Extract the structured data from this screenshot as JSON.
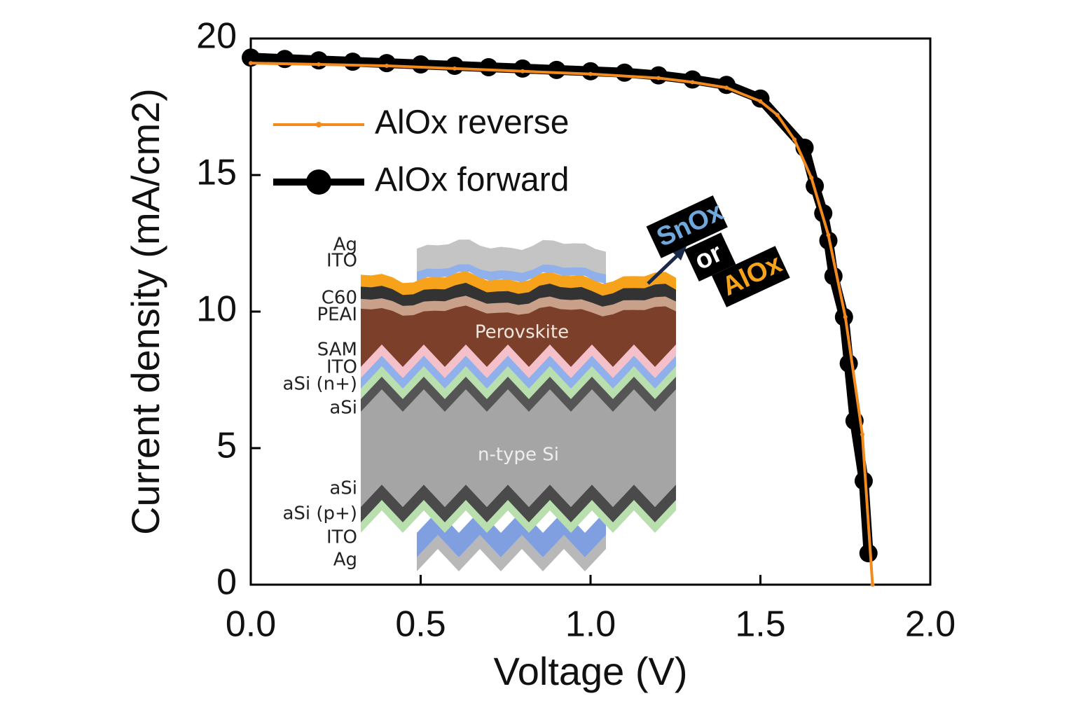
{
  "chart_data": {
    "type": "line",
    "x_label": "Voltage (V)",
    "y_label": "Current density (mA/cm2)",
    "xlim": [
      0,
      2
    ],
    "ylim": [
      0,
      20
    ],
    "xticks": [
      {
        "value": 0,
        "label": "0.0"
      },
      {
        "value": 0.5,
        "label": "0.5"
      },
      {
        "value": 1,
        "label": "1.0"
      },
      {
        "value": 1.5,
        "label": "1.5"
      },
      {
        "value": 2,
        "label": "2.0"
      }
    ],
    "yticks": [
      0,
      5,
      10,
      15,
      20
    ],
    "legend": "upper left",
    "series": [
      {
        "name": "AlOx reverse",
        "color": "#f28a1e",
        "x": [
          0,
          0.2,
          0.4,
          0.6,
          0.8,
          1.0,
          1.2,
          1.3,
          1.4,
          1.5,
          1.55,
          1.6,
          1.65,
          1.7,
          1.75,
          1.8,
          1.83
        ],
        "values": [
          19.1,
          19.05,
          19.0,
          18.9,
          18.8,
          18.7,
          18.55,
          18.4,
          18.2,
          17.7,
          17.2,
          16.3,
          14.9,
          12.8,
          9.8,
          5.5,
          0
        ]
      },
      {
        "name": "AlOx forward",
        "color": "#000000",
        "x": [
          0,
          0.1,
          0.2,
          0.3,
          0.4,
          0.5,
          0.6,
          0.7,
          0.8,
          0.9,
          1.0,
          1.1,
          1.2,
          1.3,
          1.4,
          1.5,
          1.63,
          1.66,
          1.685,
          1.7,
          1.715,
          1.746,
          1.76,
          1.777,
          1.804,
          1.818
        ],
        "values": [
          19.3,
          19.25,
          19.2,
          19.15,
          19.1,
          19.05,
          19.0,
          18.95,
          18.9,
          18.85,
          18.8,
          18.75,
          18.65,
          18.5,
          18.3,
          17.8,
          16.0,
          14.6,
          13.6,
          12.6,
          11.3,
          9.8,
          8.1,
          6.0,
          3.8,
          1.15
        ]
      }
    ],
    "inset": {
      "layers": [
        "Ag",
        "ITO",
        "C60",
        "PEAI",
        "SAM",
        "ITO",
        "aSi (n+)",
        "aSi",
        "aSi",
        "aSi (p+)",
        "ITO",
        "Ag"
      ],
      "perovskite": "Perovskite",
      "substrate": "n-type Si",
      "callout": [
        "SnOx",
        "or",
        "AlOx"
      ]
    }
  }
}
